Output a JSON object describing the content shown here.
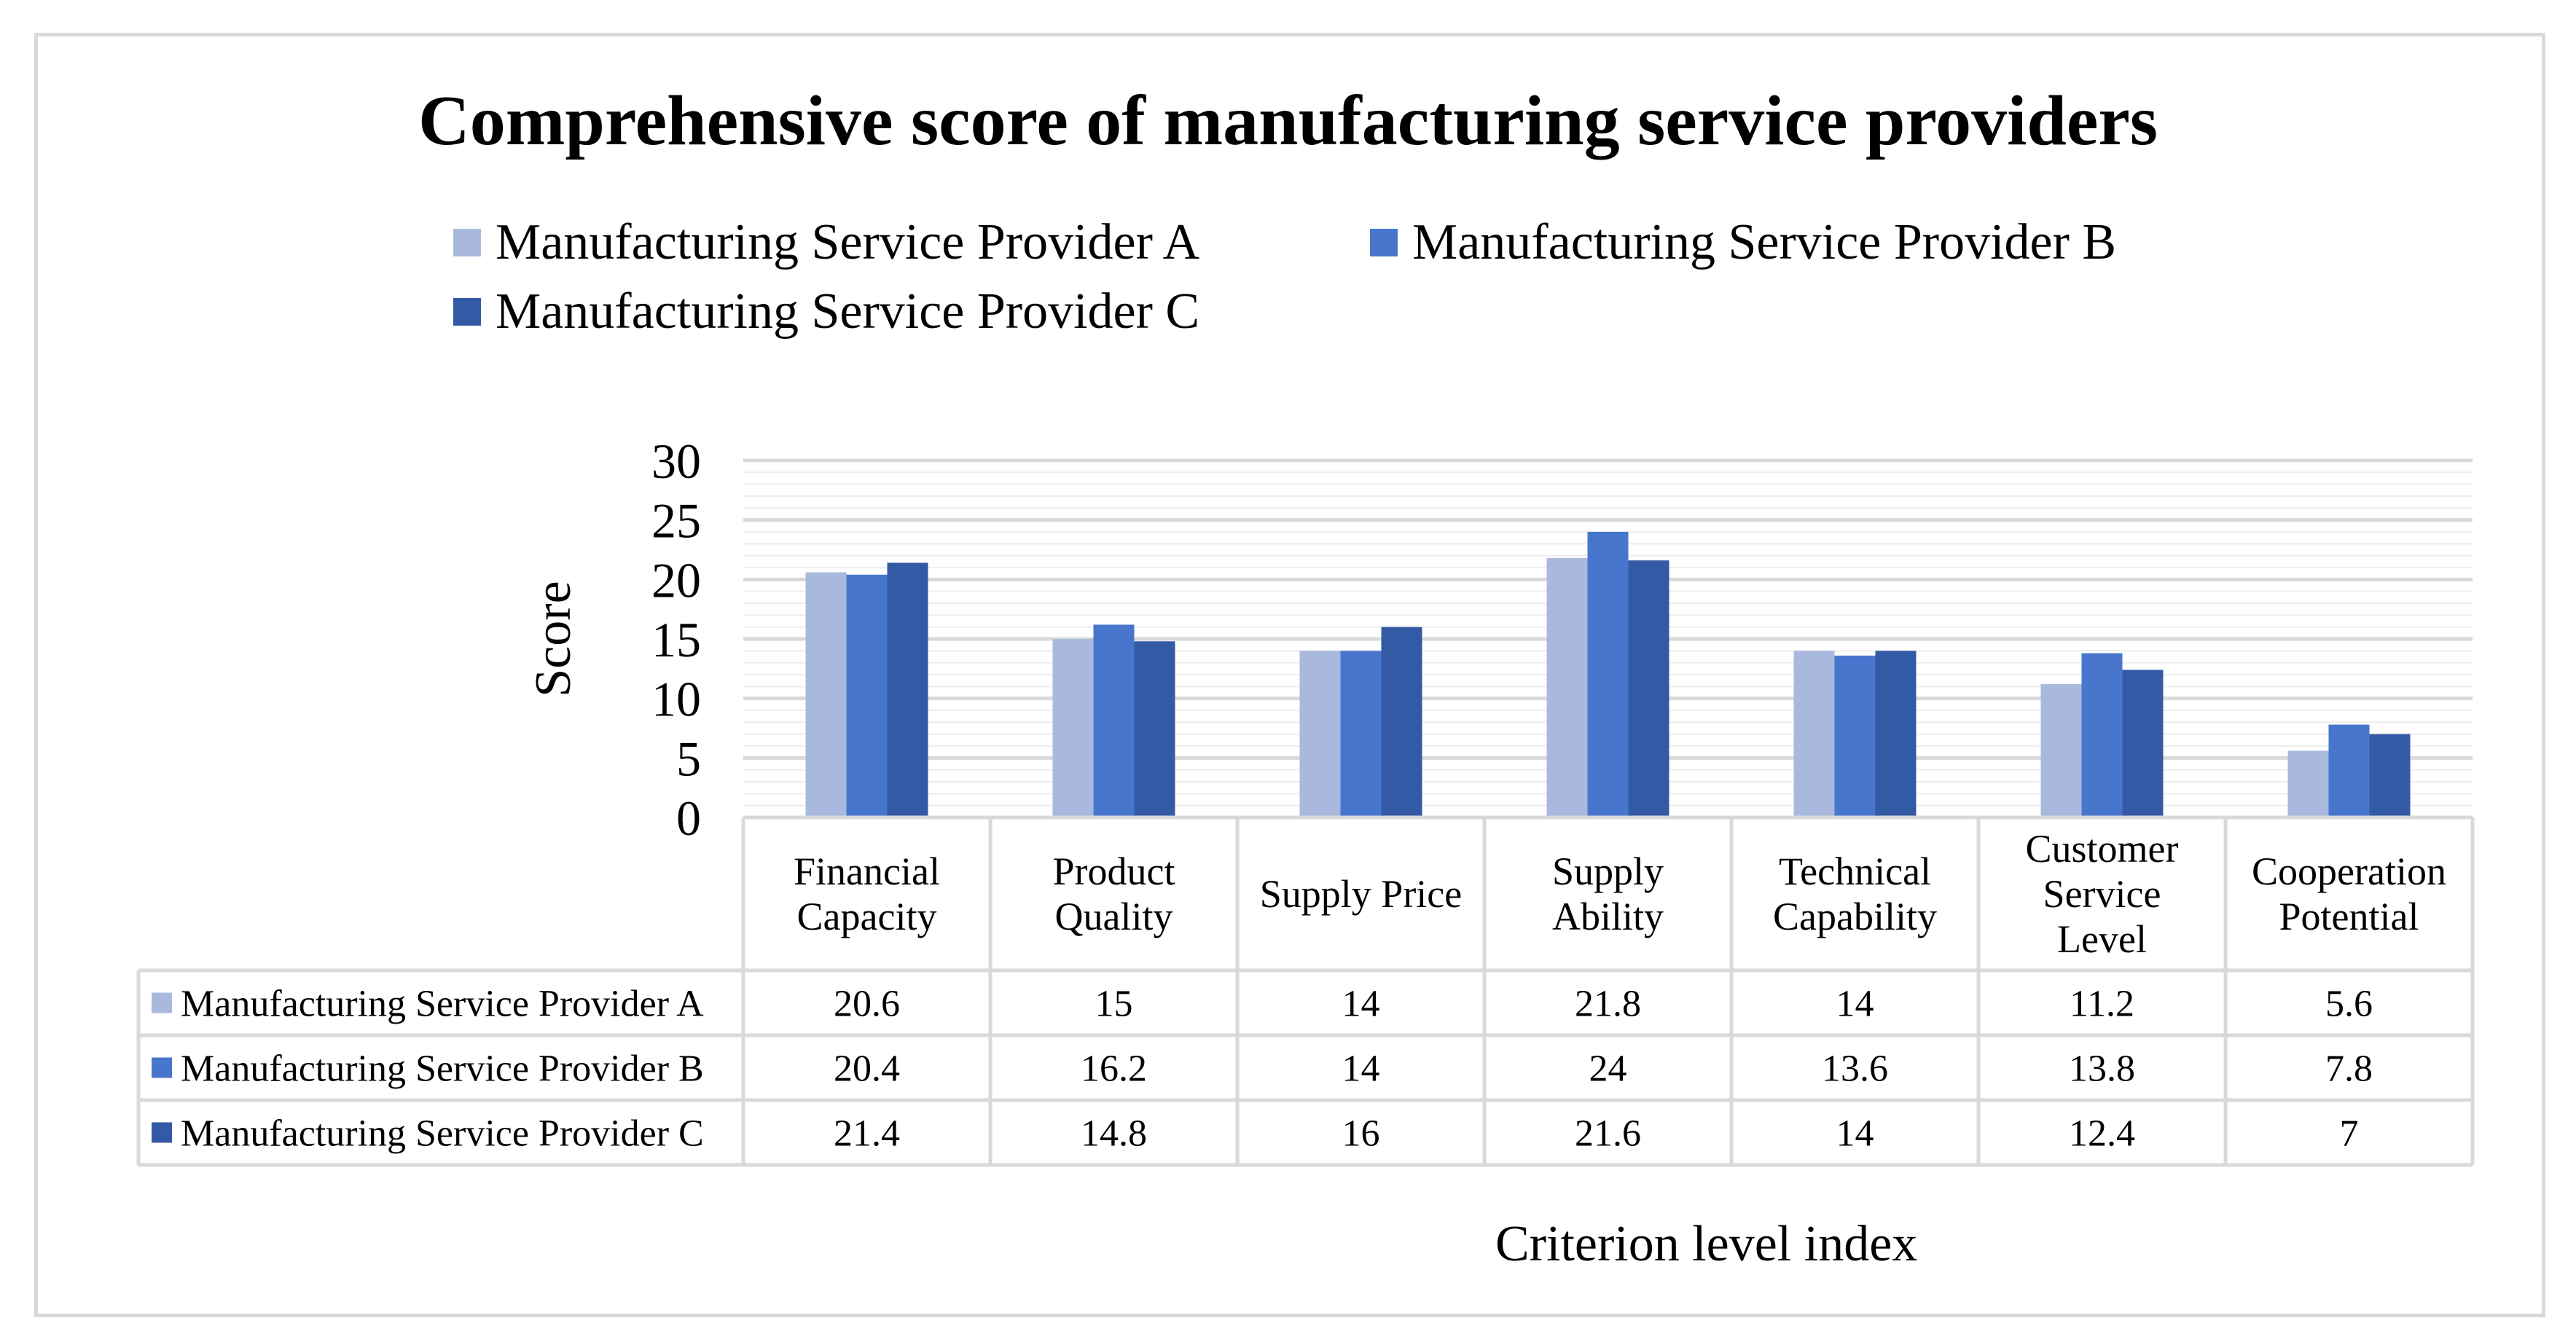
{
  "chart_data": {
    "type": "bar",
    "title": "Comprehensive score of manufacturing service providers",
    "xlabel": "Criterion level index",
    "ylabel": "Score",
    "ylim": [
      0,
      30
    ],
    "yticks": [
      "0",
      "5",
      "10",
      "15",
      "20",
      "25",
      "30"
    ],
    "grid": true,
    "legend_position": "top",
    "data_table": true,
    "categories": [
      [
        "Financial",
        "Capacity"
      ],
      [
        "Product",
        "Quality"
      ],
      [
        "Supply Price"
      ],
      [
        "Supply",
        "Ability"
      ],
      [
        "Technical",
        "Capability"
      ],
      [
        "Customer",
        "Service",
        "Level"
      ],
      [
        "Cooperation",
        "Potential"
      ]
    ],
    "series": [
      {
        "name": "Manufacturing Service Provider A",
        "color": "#a9b9dd",
        "values": [
          20.6,
          15,
          14,
          21.8,
          14,
          11.2,
          5.6
        ],
        "labels": [
          "20.6",
          "15",
          "14",
          "21.8",
          "14",
          "11.2",
          "5.6"
        ]
      },
      {
        "name": "Manufacturing Service Provider B",
        "color": "#4876cd",
        "values": [
          20.4,
          16.2,
          14,
          24,
          13.6,
          13.8,
          7.8
        ],
        "labels": [
          "20.4",
          "16.2",
          "14",
          "24",
          "13.6",
          "13.8",
          "7.8"
        ]
      },
      {
        "name": "Manufacturing Service Provider C",
        "color": "#335aa5",
        "values": [
          21.4,
          14.8,
          16,
          21.6,
          14,
          12.4,
          7
        ],
        "labels": [
          "21.4",
          "14.8",
          "16",
          "21.6",
          "14",
          "12.4",
          "7"
        ]
      }
    ]
  }
}
